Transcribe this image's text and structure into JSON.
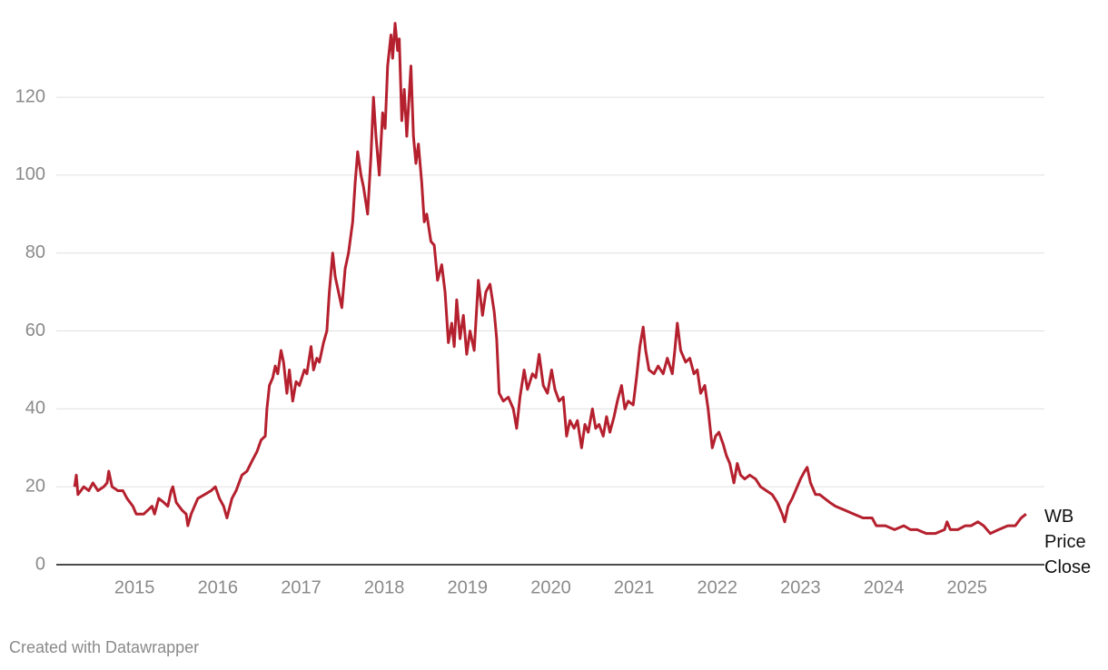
{
  "chart_data": {
    "type": "line",
    "footer": "Created with Datawrapper",
    "xlim": [
      2014.06,
      2025.93
    ],
    "xticks": [
      2015,
      2016,
      2017,
      2018,
      2019,
      2020,
      2021,
      2022,
      2023,
      2024,
      2025
    ],
    "ylim": [
      0,
      141
    ],
    "yticks": [
      0,
      20,
      40,
      60,
      80,
      100,
      120
    ],
    "grid": true,
    "x": [
      2014.28,
      2014.3,
      2014.32,
      2014.39,
      2014.45,
      2014.5,
      2014.56,
      2014.63,
      2014.67,
      2014.69,
      2014.73,
      2014.8,
      2014.86,
      2014.91,
      2014.98,
      2015.02,
      2015.11,
      2015.16,
      2015.21,
      2015.24,
      2015.29,
      2015.35,
      2015.4,
      2015.44,
      2015.46,
      2015.5,
      2015.57,
      2015.62,
      2015.64,
      2015.68,
      2015.76,
      2015.84,
      2015.92,
      2015.97,
      2016.02,
      2016.07,
      2016.11,
      2016.17,
      2016.22,
      2016.29,
      2016.35,
      2016.42,
      2016.47,
      2016.52,
      2016.57,
      2016.59,
      2016.62,
      2016.66,
      2016.69,
      2016.72,
      2016.76,
      2016.79,
      2016.83,
      2016.86,
      2016.9,
      2016.94,
      2016.98,
      2017.04,
      2017.07,
      2017.12,
      2017.15,
      2017.19,
      2017.22,
      2017.27,
      2017.31,
      2017.34,
      2017.38,
      2017.41,
      2017.45,
      2017.49,
      2017.53,
      2017.57,
      2017.62,
      2017.65,
      2017.68,
      2017.72,
      2017.75,
      2017.8,
      2017.84,
      2017.87,
      2017.9,
      2017.94,
      2017.98,
      2018.01,
      2018.04,
      2018.08,
      2018.1,
      2018.13,
      2018.16,
      2018.18,
      2018.21,
      2018.24,
      2018.27,
      2018.32,
      2018.35,
      2018.38,
      2018.41,
      2018.45,
      2018.48,
      2018.51,
      2018.56,
      2018.6,
      2018.64,
      2018.69,
      2018.73,
      2018.77,
      2018.81,
      2018.84,
      2018.87,
      2018.91,
      2018.95,
      2018.99,
      2019.03,
      2019.08,
      2019.13,
      2019.18,
      2019.22,
      2019.27,
      2019.32,
      2019.35,
      2019.38,
      2019.43,
      2019.49,
      2019.55,
      2019.59,
      2019.63,
      2019.68,
      2019.72,
      2019.78,
      2019.82,
      2019.86,
      2019.91,
      2019.96,
      2020.01,
      2020.05,
      2020.1,
      2020.15,
      2020.19,
      2020.23,
      2020.28,
      2020.32,
      2020.37,
      2020.41,
      2020.45,
      2020.5,
      2020.54,
      2020.58,
      2020.63,
      2020.67,
      2020.71,
      2020.76,
      2020.8,
      2020.85,
      2020.89,
      2020.93,
      2020.99,
      2021.03,
      2021.07,
      2021.11,
      2021.14,
      2021.18,
      2021.24,
      2021.29,
      2021.35,
      2021.4,
      2021.46,
      2021.49,
      2021.52,
      2021.56,
      2021.62,
      2021.67,
      2021.72,
      2021.76,
      2021.8,
      2021.85,
      2021.89,
      2021.94,
      2021.98,
      2022.02,
      2022.07,
      2022.11,
      2022.15,
      2022.2,
      2022.24,
      2022.28,
      2022.33,
      2022.39,
      2022.46,
      2022.52,
      2022.59,
      2022.66,
      2022.72,
      2022.78,
      2022.81,
      2022.85,
      2022.9,
      2022.94,
      2023.0,
      2023.05,
      2023.08,
      2023.12,
      2023.18,
      2023.23,
      2023.29,
      2023.35,
      2023.42,
      2023.53,
      2023.64,
      2023.75,
      2023.86,
      2023.91,
      2024.02,
      2024.13,
      2024.24,
      2024.32,
      2024.4,
      2024.51,
      2024.62,
      2024.73,
      2024.76,
      2024.8,
      2024.89,
      2024.98,
      2025.05,
      2025.13,
      2025.2,
      2025.28,
      2025.38,
      2025.49,
      2025.58,
      2025.65,
      2025.71
    ],
    "series": [
      {
        "name": "WB Price Close",
        "color": "#b5202e",
        "values": [
          20,
          23,
          18,
          20,
          19,
          21,
          19,
          20,
          21,
          24,
          20,
          19,
          19,
          17,
          15,
          13,
          13,
          14,
          15,
          13,
          17,
          16,
          15,
          19,
          20,
          16,
          14,
          13,
          10,
          13,
          17,
          18,
          19,
          20,
          17,
          15,
          12,
          17,
          19,
          23,
          24,
          27,
          29,
          32,
          33,
          40,
          46,
          48,
          51,
          49,
          55,
          52,
          44,
          50,
          42,
          47,
          46,
          50,
          49,
          56,
          50,
          53,
          52,
          57,
          60,
          70,
          80,
          74,
          70,
          66,
          76,
          80,
          88,
          98,
          106,
          100,
          97,
          90,
          105,
          120,
          110,
          100,
          116,
          112,
          128,
          136,
          130,
          139,
          132,
          135,
          114,
          122,
          110,
          128,
          110,
          103,
          108,
          98,
          88,
          90,
          83,
          82,
          73,
          77,
          70,
          57,
          62,
          56,
          68,
          58,
          64,
          54,
          60,
          55,
          73,
          64,
          70,
          72,
          65,
          58,
          44,
          42,
          43,
          40,
          35,
          43,
          50,
          45,
          49,
          48,
          54,
          46,
          44,
          50,
          45,
          42,
          43,
          33,
          37,
          35,
          37,
          30,
          36,
          34,
          40,
          35,
          36,
          33,
          38,
          34,
          38,
          42,
          46,
          40,
          42,
          41,
          48,
          56,
          61,
          55,
          50,
          49,
          51,
          49,
          53,
          49,
          55,
          62,
          55,
          52,
          53,
          49,
          50,
          44,
          46,
          40,
          30,
          33,
          34,
          31,
          28,
          26,
          21,
          26,
          23,
          22,
          23,
          22,
          20,
          19,
          18,
          16,
          13,
          11,
          15,
          17,
          19,
          22,
          24,
          25,
          21,
          18,
          18,
          17,
          16,
          15,
          14,
          13,
          12,
          12,
          10,
          10,
          9,
          10,
          9,
          9,
          8,
          8,
          9,
          11,
          9,
          9,
          10,
          10,
          11,
          10,
          8,
          9,
          10,
          10,
          12,
          13
        ]
      }
    ]
  }
}
